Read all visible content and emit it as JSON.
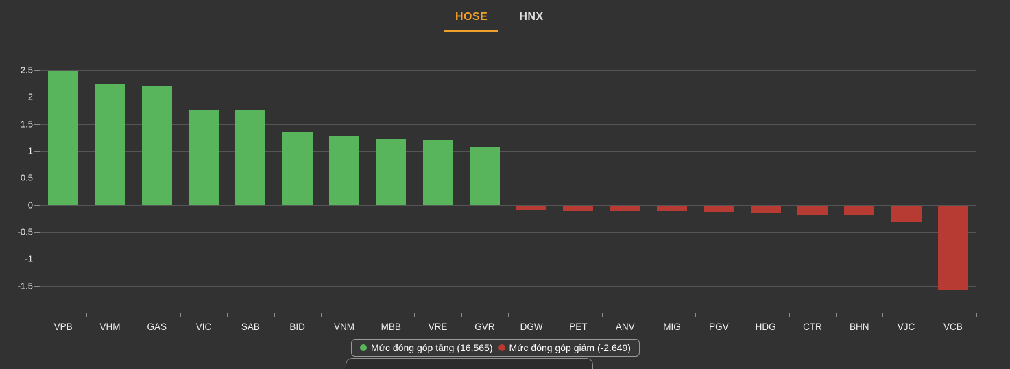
{
  "tabs": {
    "items": [
      {
        "label": "HOSE",
        "active": true
      },
      {
        "label": "HNX",
        "active": false
      }
    ]
  },
  "colors": {
    "background": "#323232",
    "increase_green": "#58b55c",
    "decrease_red": "#b83b33",
    "accent_orange": "#f0a02d",
    "grid": "#555555",
    "axis": "#8a8a8a",
    "text": "#e8e8e8"
  },
  "chart_data": {
    "type": "bar",
    "title": "",
    "xlabel": "",
    "ylabel": "",
    "categories": [
      "VPB",
      "VHM",
      "GAS",
      "VIC",
      "SAB",
      "BID",
      "VNM",
      "MBB",
      "VRE",
      "GVR",
      "DGW",
      "PET",
      "ANV",
      "MIG",
      "PGV",
      "HDG",
      "CTR",
      "BHN",
      "VJC",
      "VCB"
    ],
    "values": [
      2.48,
      2.23,
      2.2,
      1.76,
      1.75,
      1.35,
      1.28,
      1.21,
      1.2,
      1.07,
      -0.08,
      -0.09,
      -0.1,
      -0.11,
      -0.12,
      -0.15,
      -0.17,
      -0.18,
      -0.3,
      -1.57
    ],
    "y_ticks": [
      "2.5",
      "2",
      "1.5",
      "1",
      "0.5",
      "0",
      "-0.5",
      "-1",
      "-1.5"
    ],
    "y_tick_values": [
      2.5,
      2,
      1.5,
      1,
      0.5,
      0,
      -0.5,
      -1,
      -1.5
    ],
    "ylim": [
      -2.0,
      2.93
    ],
    "grid": true,
    "legend_position": "bottom",
    "legend": [
      {
        "label": "Mức đóng góp tăng (16.565)",
        "color_key": "increase_green"
      },
      {
        "label": "Mức đóng góp giảm (-2.649)",
        "color_key": "decrease_red"
      }
    ]
  },
  "legend": {
    "increase": "Mức đóng góp tăng (16.565)",
    "decrease": "Mức đóng góp giảm (-2.649)"
  }
}
